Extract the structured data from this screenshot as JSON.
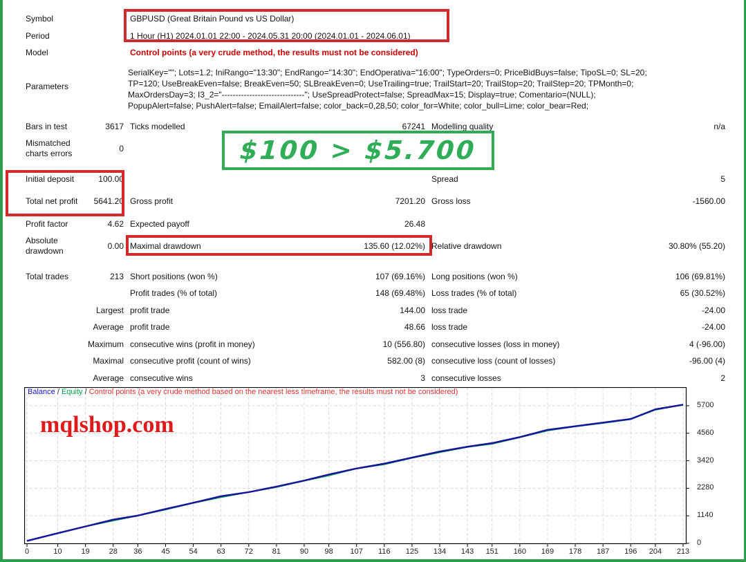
{
  "report": {
    "symbol": {
      "label": "Symbol",
      "value": "GBPUSD (Great Britain Pound vs US Dollar)"
    },
    "period": {
      "label": "Period",
      "value": "1 Hour (H1) 2024.01.01 22:00 - 2024.05.31 20:00 (2024.01.01 - 2024.06.01)"
    },
    "model": {
      "label": "Model",
      "value": "Control points (a very crude method, the results must not be considered)"
    },
    "parameters": {
      "label": "Parameters",
      "lines": [
        "SerialKey=\"\"; Lots=1.2; IniRango=\"13:30\"; EndRango=\"14:30\"; EndOperativa=\"16:00\"; TypeOrders=0; PriceBidBuys=false; TipoSL=0; SL=20;",
        "TP=120; UseBreakEven=false; BreakEven=50; SLBreakEven=0; UseTrailing=true; TrailStart=20; TrailStop=20; TrailStep=20; TPMonth=0;",
        "MaxOrdersDay=3; I3_2=\"------------------------------\"; UseSpreadProtect=false; SpreadMax=15; Display=true; Comentario=(NULL);",
        "PopupAlert=false; PushAlert=false; EmailAlert=false; color_back=0,28,50; color_for=White; color_bull=Lime; color_bear=Red;"
      ]
    },
    "bars_in_test": {
      "label": "Bars in test",
      "value": "3617"
    },
    "ticks_modelled": {
      "label": "Ticks modelled",
      "value": "67241"
    },
    "modelling_quality": {
      "label": "Modelling quality",
      "value": "n/a"
    },
    "mismatched": {
      "label": "Mismatched charts errors",
      "value": "0"
    },
    "banner_text": "$100 > $5.700",
    "initial_deposit": {
      "label": "Initial deposit",
      "value": "100.00"
    },
    "spread": {
      "label": "Spread",
      "value": "5"
    },
    "total_net_profit": {
      "label": "Total net profit",
      "value": "5641.20"
    },
    "gross_profit": {
      "label": "Gross profit",
      "value": "7201.20"
    },
    "gross_loss": {
      "label": "Gross loss",
      "value": "-1560.00"
    },
    "profit_factor": {
      "label": "Profit factor",
      "value": "4.62"
    },
    "expected_payoff": {
      "label": "Expected payoff",
      "value": "26.48"
    },
    "absolute_drawdown": {
      "label": "Absolute drawdown",
      "value": "0.00"
    },
    "maximal_drawdown": {
      "label": "Maximal drawdown",
      "value": "135.60 (12.02%)"
    },
    "relative_drawdown": {
      "label": "Relative drawdown",
      "value": "30.80% (55.20)"
    },
    "total_trades": {
      "label": "Total trades",
      "value": "213"
    },
    "short_positions": {
      "label": "Short positions (won %)",
      "value": "107 (69.16%)"
    },
    "long_positions": {
      "label": "Long positions (won %)",
      "value": "106 (69.81%)"
    },
    "profit_trades": {
      "label": "Profit trades (% of total)",
      "value": "148 (69.48%)"
    },
    "loss_trades": {
      "label": "Loss trades (% of total)",
      "value": "65 (30.52%)"
    },
    "largest": {
      "label": "Largest",
      "profit_label": "profit trade",
      "profit_value": "144.00",
      "loss_label": "loss trade",
      "loss_value": "-24.00"
    },
    "average": {
      "label": "Average",
      "profit_label": "profit trade",
      "profit_value": "48.66",
      "loss_label": "loss trade",
      "loss_value": "-24.00"
    },
    "maximum_consec": {
      "label": "Maximum",
      "win_label": "consecutive wins (profit in money)",
      "win_value": "10 (556.80)",
      "loss_label": "consecutive losses (loss in money)",
      "loss_value": "4 (-96.00)"
    },
    "maximal_consec": {
      "label": "Maximal",
      "win_label": "consecutive profit (count of wins)",
      "win_value": "582.00 (8)",
      "loss_label": "consecutive loss (count of losses)",
      "loss_value": "-96.00 (4)"
    },
    "average_consec": {
      "label": "Average",
      "win_label": "consecutive wins",
      "win_value": "3",
      "loss_label": "consecutive losses",
      "loss_value": "2"
    }
  },
  "chart": {
    "legend": {
      "balance": "Balance",
      "equity": "Equity",
      "sep": " / ",
      "note": "Control points (a very crude method based on the nearest less timeframe, the results must not be considered)"
    },
    "watermark": "mqlshop.com"
  },
  "chart_data": {
    "type": "line",
    "title": "",
    "xlabel": "",
    "ylabel": "",
    "x": [
      0,
      10,
      19,
      28,
      36,
      45,
      54,
      63,
      72,
      81,
      90,
      98,
      107,
      116,
      125,
      134,
      143,
      151,
      160,
      169,
      178,
      187,
      196,
      204,
      213
    ],
    "series": [
      {
        "name": "Equity",
        "color": "#00a24a",
        "values": [
          100,
          400,
          690,
          930,
          1140,
          1390,
          1660,
          1900,
          2110,
          2320,
          2580,
          2800,
          3090,
          3260,
          3530,
          3760,
          3980,
          4110,
          4380,
          4660,
          4830,
          4970,
          5130,
          5520,
          5741
        ]
      },
      {
        "name": "Balance",
        "color": "#16169b",
        "values": [
          100,
          420,
          700,
          980,
          1150,
          1420,
          1680,
          1950,
          2120,
          2350,
          2600,
          2850,
          3100,
          3300,
          3550,
          3800,
          4000,
          4150,
          4400,
          4700,
          4850,
          5000,
          5150,
          5550,
          5741
        ]
      }
    ],
    "yticks": [
      0,
      1140,
      2280,
      3420,
      4560,
      5700
    ],
    "ylim": [
      0,
      6470
    ],
    "xlim": [
      0,
      213
    ],
    "grid": true,
    "legend_position": "top-left"
  },
  "colors": {
    "frame_green": "#2e9e4f",
    "annotation_red": "#d22a2a",
    "annotation_green": "#32ab53",
    "banner_green": "#2fae57",
    "model_red": "#cc0000",
    "balance_blue": "#16169b",
    "equity_green": "#00a24a",
    "watermark_red": "#df1a1a"
  }
}
